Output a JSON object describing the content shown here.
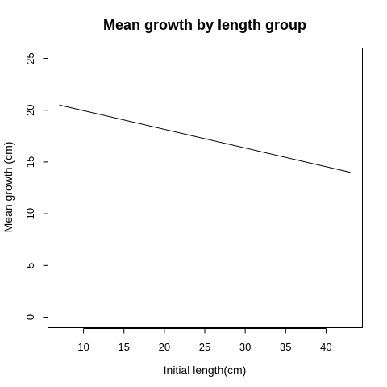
{
  "chart_data": {
    "type": "line",
    "title": "Mean growth by length group",
    "xlabel": "Initial length(cm)",
    "ylabel": "Mean growth (cm)",
    "x": [
      7,
      43
    ],
    "series": [
      {
        "values": [
          20.5,
          14.0
        ]
      }
    ],
    "xlim": [
      7,
      43
    ],
    "ylim": [
      0,
      25
    ],
    "xticks": [
      10,
      15,
      20,
      25,
      30,
      35,
      40
    ],
    "yticks": [
      0,
      5,
      10,
      15,
      20,
      25
    ],
    "grid": false,
    "line_color": "#000000"
  }
}
